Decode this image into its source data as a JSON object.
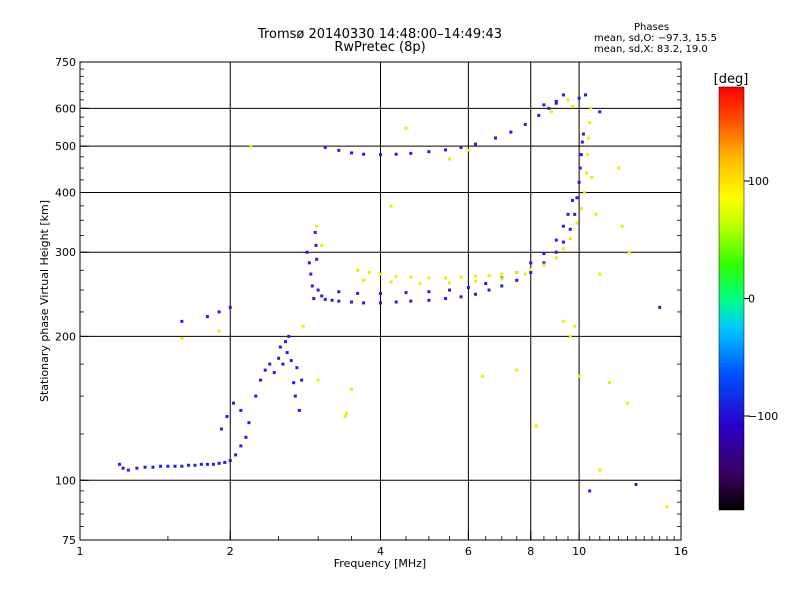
{
  "title": {
    "line1": "Tromsø 20140330 14:48:00–14:49:43",
    "line2": "RwPretec (8p)"
  },
  "phase_box": {
    "heading": "Phases",
    "o_line": "mean, sd,O: −97.3, 15.5",
    "x_line": "mean, sd,X:  83.2, 19.0"
  },
  "chart_data": {
    "type": "scatter",
    "title": "Tromsø 20140330 14:48:00–14:49:43",
    "subtitle": "RwPretec (8p)",
    "xlabel": "Frequency [MHz]",
    "ylabel": "Stationary phase Virtual Height [km]",
    "xscale": "log",
    "yscale": "log",
    "xlim": [
      1,
      16
    ],
    "ylim": [
      75,
      750
    ],
    "x_ticks": [
      1,
      2,
      4,
      6,
      8,
      10,
      16
    ],
    "x_tick_labels": [
      "1",
      "2",
      "4",
      "6",
      "8",
      "10",
      "16"
    ],
    "y_ticks": [
      75,
      100,
      200,
      300,
      400,
      500,
      600,
      750
    ],
    "y_tick_labels": [
      "75",
      "100",
      "200",
      "300",
      "400",
      "500",
      "600",
      "750"
    ],
    "x_grid": [
      2,
      4,
      6,
      8,
      10
    ],
    "y_grid": [
      100,
      200,
      300,
      400,
      500,
      600
    ],
    "grid": true,
    "colorbar": {
      "label": "[deg]",
      "range": [
        -180,
        180
      ],
      "ticks": [
        100,
        0,
        -100
      ],
      "tick_labels": [
        "100",
        "0",
        "−100"
      ],
      "colors": [
        "#000000",
        "#3a005a",
        "#2a00c8",
        "#0050ff",
        "#00c8ff",
        "#00ff80",
        "#30ff00",
        "#c8ff00",
        "#ffff00",
        "#ffb000",
        "#ff5000",
        "#ff0000"
      ]
    },
    "series": [
      {
        "name": "O-mode",
        "phase_deg": -97.3,
        "color": "#2020e0",
        "points": [
          [
            1.2,
            108
          ],
          [
            1.22,
            106
          ],
          [
            1.25,
            105
          ],
          [
            1.3,
            106
          ],
          [
            1.35,
            106.5
          ],
          [
            1.4,
            106.5
          ],
          [
            1.45,
            107
          ],
          [
            1.5,
            107
          ],
          [
            1.55,
            107
          ],
          [
            1.6,
            107
          ],
          [
            1.65,
            107.5
          ],
          [
            1.7,
            107.5
          ],
          [
            1.75,
            108
          ],
          [
            1.8,
            108
          ],
          [
            1.85,
            108
          ],
          [
            1.9,
            108.5
          ],
          [
            1.95,
            109
          ],
          [
            2.0,
            110
          ],
          [
            2.05,
            113
          ],
          [
            2.1,
            118
          ],
          [
            2.15,
            123
          ],
          [
            1.92,
            128
          ],
          [
            1.97,
            136
          ],
          [
            2.03,
            145
          ],
          [
            2.1,
            140
          ],
          [
            2.18,
            132
          ],
          [
            2.25,
            150
          ],
          [
            2.3,
            162
          ],
          [
            2.35,
            170
          ],
          [
            2.4,
            175
          ],
          [
            2.45,
            168
          ],
          [
            2.5,
            180
          ],
          [
            2.52,
            190
          ],
          [
            2.55,
            175
          ],
          [
            2.58,
            195
          ],
          [
            2.6,
            185
          ],
          [
            2.62,
            200
          ],
          [
            2.65,
            178
          ],
          [
            2.68,
            160
          ],
          [
            2.7,
            150
          ],
          [
            2.72,
            172
          ],
          [
            2.75,
            140
          ],
          [
            2.78,
            162
          ],
          [
            1.8,
            220
          ],
          [
            1.9,
            225
          ],
          [
            2.0,
            230
          ],
          [
            1.6,
            215
          ],
          [
            2.85,
            300
          ],
          [
            2.88,
            285
          ],
          [
            2.9,
            270
          ],
          [
            2.92,
            255
          ],
          [
            2.94,
            240
          ],
          [
            2.96,
            330
          ],
          [
            2.97,
            310
          ],
          [
            2.98,
            290
          ],
          [
            3.0,
            250
          ],
          [
            3.05,
            243
          ],
          [
            3.1,
            239
          ],
          [
            3.2,
            238
          ],
          [
            3.3,
            237
          ],
          [
            3.5,
            236
          ],
          [
            3.7,
            235
          ],
          [
            4.0,
            235
          ],
          [
            4.3,
            236
          ],
          [
            4.6,
            237
          ],
          [
            5.0,
            238
          ],
          [
            5.4,
            240
          ],
          [
            5.8,
            242
          ],
          [
            6.2,
            245
          ],
          [
            6.6,
            250
          ],
          [
            7.0,
            255
          ],
          [
            7.5,
            262
          ],
          [
            8.0,
            272
          ],
          [
            8.5,
            285
          ],
          [
            9.0,
            300
          ],
          [
            9.3,
            315
          ],
          [
            9.6,
            335
          ],
          [
            9.8,
            360
          ],
          [
            9.9,
            390
          ],
          [
            10.0,
            420
          ],
          [
            10.05,
            450
          ],
          [
            10.1,
            480
          ],
          [
            10.15,
            510
          ],
          [
            10.2,
            530
          ],
          [
            3.3,
            248
          ],
          [
            3.6,
            246
          ],
          [
            4.0,
            246
          ],
          [
            4.5,
            247
          ],
          [
            5.0,
            248
          ],
          [
            5.5,
            250
          ],
          [
            6.0,
            253
          ],
          [
            6.5,
            258
          ],
          [
            7.0,
            265
          ],
          [
            7.5,
            272
          ],
          [
            8.0,
            285
          ],
          [
            8.5,
            298
          ],
          [
            9.0,
            318
          ],
          [
            9.3,
            340
          ],
          [
            9.5,
            360
          ],
          [
            9.7,
            385
          ],
          [
            3.1,
            497
          ],
          [
            3.3,
            490
          ],
          [
            3.5,
            484
          ],
          [
            3.7,
            481
          ],
          [
            4.0,
            480
          ],
          [
            4.3,
            481
          ],
          [
            4.6,
            483
          ],
          [
            5.0,
            487
          ],
          [
            5.4,
            491
          ],
          [
            5.8,
            497
          ],
          [
            6.2,
            505
          ],
          [
            6.8,
            520
          ],
          [
            7.3,
            535
          ],
          [
            7.8,
            555
          ],
          [
            8.3,
            580
          ],
          [
            8.7,
            600
          ],
          [
            9.0,
            620
          ],
          [
            9.3,
            640
          ],
          [
            8.5,
            610
          ],
          [
            9.0,
            615
          ],
          [
            10.0,
            630
          ],
          [
            10.3,
            640
          ],
          [
            13.0,
            98
          ],
          [
            14.5,
            230
          ],
          [
            11.0,
            590
          ],
          [
            10.5,
            95
          ]
        ]
      },
      {
        "name": "X-mode",
        "phase_deg": 83.2,
        "color": "#e8f000",
        "points": [
          [
            3.6,
            275
          ],
          [
            3.8,
            272
          ],
          [
            4.0,
            270
          ],
          [
            4.3,
            267
          ],
          [
            4.6,
            266
          ],
          [
            5.0,
            265
          ],
          [
            5.4,
            265
          ],
          [
            5.8,
            266
          ],
          [
            6.2,
            267
          ],
          [
            6.6,
            268
          ],
          [
            7.0,
            270
          ],
          [
            7.5,
            272
          ],
          [
            8.0,
            276
          ],
          [
            8.5,
            282
          ],
          [
            9.0,
            292
          ],
          [
            9.3,
            305
          ],
          [
            9.6,
            320
          ],
          [
            9.9,
            345
          ],
          [
            10.1,
            370
          ],
          [
            10.25,
            400
          ],
          [
            10.35,
            440
          ],
          [
            10.4,
            480
          ],
          [
            10.45,
            520
          ],
          [
            10.5,
            560
          ],
          [
            10.55,
            600
          ],
          [
            3.7,
            262
          ],
          [
            4.2,
            260
          ],
          [
            4.8,
            258
          ],
          [
            5.5,
            259
          ],
          [
            6.2,
            261
          ],
          [
            7.0,
            264
          ],
          [
            7.8,
            270
          ],
          [
            9.5,
            625
          ],
          [
            9.7,
            605
          ],
          [
            8.8,
            590
          ],
          [
            6.0,
            490
          ],
          [
            5.5,
            470
          ],
          [
            3.4,
            136
          ],
          [
            3.42,
            138
          ],
          [
            2.2,
            500
          ],
          [
            2.98,
            340
          ],
          [
            3.05,
            310
          ],
          [
            1.6,
            198
          ],
          [
            1.9,
            205
          ],
          [
            2.8,
            210
          ],
          [
            3.0,
            162
          ],
          [
            3.5,
            155
          ],
          [
            4.2,
            375
          ],
          [
            4.5,
            545
          ],
          [
            10.6,
            430
          ],
          [
            10.8,
            360
          ],
          [
            12.0,
            450
          ],
          [
            12.2,
            340
          ],
          [
            12.6,
            300
          ],
          [
            11.0,
            270
          ],
          [
            11.5,
            160
          ],
          [
            12.5,
            145
          ],
          [
            15.0,
            88
          ],
          [
            11.0,
            105
          ],
          [
            8.2,
            130
          ],
          [
            7.5,
            170
          ],
          [
            9.3,
            215
          ],
          [
            9.8,
            210
          ],
          [
            9.6,
            200
          ],
          [
            6.4,
            165
          ],
          [
            10.0,
            165
          ]
        ]
      }
    ]
  }
}
